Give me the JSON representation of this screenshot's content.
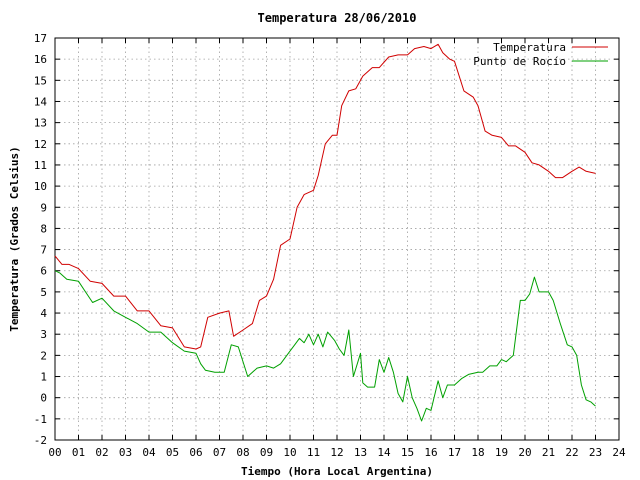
{
  "chart_data": {
    "type": "line",
    "title": "Temperatura 28/06/2010",
    "xlabel": "Tiempo (Hora Local Argentina)",
    "ylabel": "Temperatura (Grados Celsius)",
    "xlim": [
      0,
      24
    ],
    "ylim": [
      -2,
      17
    ],
    "grid": true,
    "legend": "top-right",
    "xticks": [
      "00",
      "01",
      "02",
      "03",
      "04",
      "05",
      "06",
      "07",
      "08",
      "09",
      "10",
      "11",
      "12",
      "13",
      "14",
      "15",
      "16",
      "17",
      "18",
      "19",
      "20",
      "21",
      "22",
      "23",
      "24"
    ],
    "yticks": [
      -2,
      -1,
      0,
      1,
      2,
      3,
      4,
      5,
      6,
      7,
      8,
      9,
      10,
      11,
      12,
      13,
      14,
      15,
      16,
      17
    ],
    "series": [
      {
        "name": "Temperatura",
        "color": "#d00000",
        "x": [
          0,
          0.3,
          0.6,
          1,
          1.5,
          2,
          2.5,
          3,
          3.5,
          4,
          4.5,
          5,
          5.5,
          6,
          6.2,
          6.5,
          7,
          7.4,
          7.6,
          8,
          8.4,
          8.7,
          9,
          9.3,
          9.6,
          10,
          10.3,
          10.6,
          11,
          11.2,
          11.5,
          11.8,
          12,
          12.2,
          12.5,
          12.8,
          13.1,
          13.5,
          13.8,
          14.2,
          14.6,
          15,
          15.3,
          15.7,
          16,
          16.3,
          16.5,
          16.8,
          17,
          17.4,
          17.8,
          18,
          18.3,
          18.6,
          19,
          19.3,
          19.6,
          20,
          20.3,
          20.6,
          21,
          21.3,
          21.6,
          22,
          22.3,
          22.6,
          23
        ],
        "values": [
          6.7,
          6.3,
          6.3,
          6.1,
          5.5,
          5.4,
          4.8,
          4.8,
          4.1,
          4.1,
          3.4,
          3.3,
          2.4,
          2.3,
          2.4,
          3.8,
          4.0,
          4.1,
          2.9,
          3.2,
          3.5,
          4.6,
          4.8,
          5.6,
          7.2,
          7.5,
          9.0,
          9.6,
          9.8,
          10.5,
          12.0,
          12.4,
          12.4,
          13.8,
          14.5,
          14.6,
          15.2,
          15.6,
          15.6,
          16.1,
          16.2,
          16.2,
          16.5,
          16.6,
          16.5,
          16.7,
          16.3,
          16.0,
          15.9,
          14.5,
          14.2,
          13.8,
          12.6,
          12.4,
          12.3,
          11.9,
          11.9,
          11.6,
          11.1,
          11.0,
          10.7,
          10.4,
          10.4,
          10.7,
          10.9,
          10.7,
          10.6
        ]
      },
      {
        "name": "Punto de Rocío",
        "color": "#00a000",
        "x": [
          0,
          0.2,
          0.5,
          1,
          1.3,
          1.6,
          2,
          2.5,
          3,
          3.5,
          4,
          4.5,
          5,
          5.5,
          6,
          6.2,
          6.4,
          6.8,
          7.2,
          7.5,
          7.8,
          8.2,
          8.6,
          9,
          9.3,
          9.6,
          10,
          10.2,
          10.4,
          10.6,
          10.8,
          11,
          11.2,
          11.4,
          11.6,
          11.9,
          12.1,
          12.3,
          12.5,
          12.7,
          13,
          13.1,
          13.3,
          13.6,
          13.8,
          14,
          14.2,
          14.4,
          14.6,
          14.8,
          15,
          15.2,
          15.4,
          15.6,
          15.8,
          16,
          16.3,
          16.5,
          16.7,
          17,
          17.3,
          17.6,
          18,
          18.2,
          18.5,
          18.8,
          19,
          19.2,
          19.5,
          19.8,
          20,
          20.2,
          20.4,
          20.6,
          21,
          21.2,
          21.5,
          21.8,
          22,
          22.2,
          22.4,
          22.6,
          22.8,
          23
        ],
        "values": [
          6.0,
          5.9,
          5.6,
          5.5,
          5.0,
          4.5,
          4.7,
          4.1,
          3.8,
          3.5,
          3.1,
          3.1,
          2.6,
          2.2,
          2.1,
          1.6,
          1.3,
          1.2,
          1.2,
          2.5,
          2.4,
          1.0,
          1.4,
          1.5,
          1.4,
          1.6,
          2.2,
          2.5,
          2.8,
          2.6,
          3.0,
          2.5,
          3.0,
          2.4,
          3.1,
          2.7,
          2.3,
          2.0,
          3.2,
          1.0,
          2.1,
          0.7,
          0.5,
          0.5,
          1.8,
          1.2,
          1.9,
          1.2,
          0.2,
          -0.2,
          1.0,
          0.0,
          -0.5,
          -1.1,
          -0.5,
          -0.6,
          0.8,
          0.0,
          0.6,
          0.6,
          0.9,
          1.1,
          1.2,
          1.2,
          1.5,
          1.5,
          1.8,
          1.7,
          2.0,
          4.6,
          4.6,
          4.9,
          5.7,
          5.0,
          5.0,
          4.6,
          3.5,
          2.5,
          2.4,
          2.0,
          0.6,
          -0.1,
          -0.2,
          -0.4
        ]
      }
    ]
  }
}
